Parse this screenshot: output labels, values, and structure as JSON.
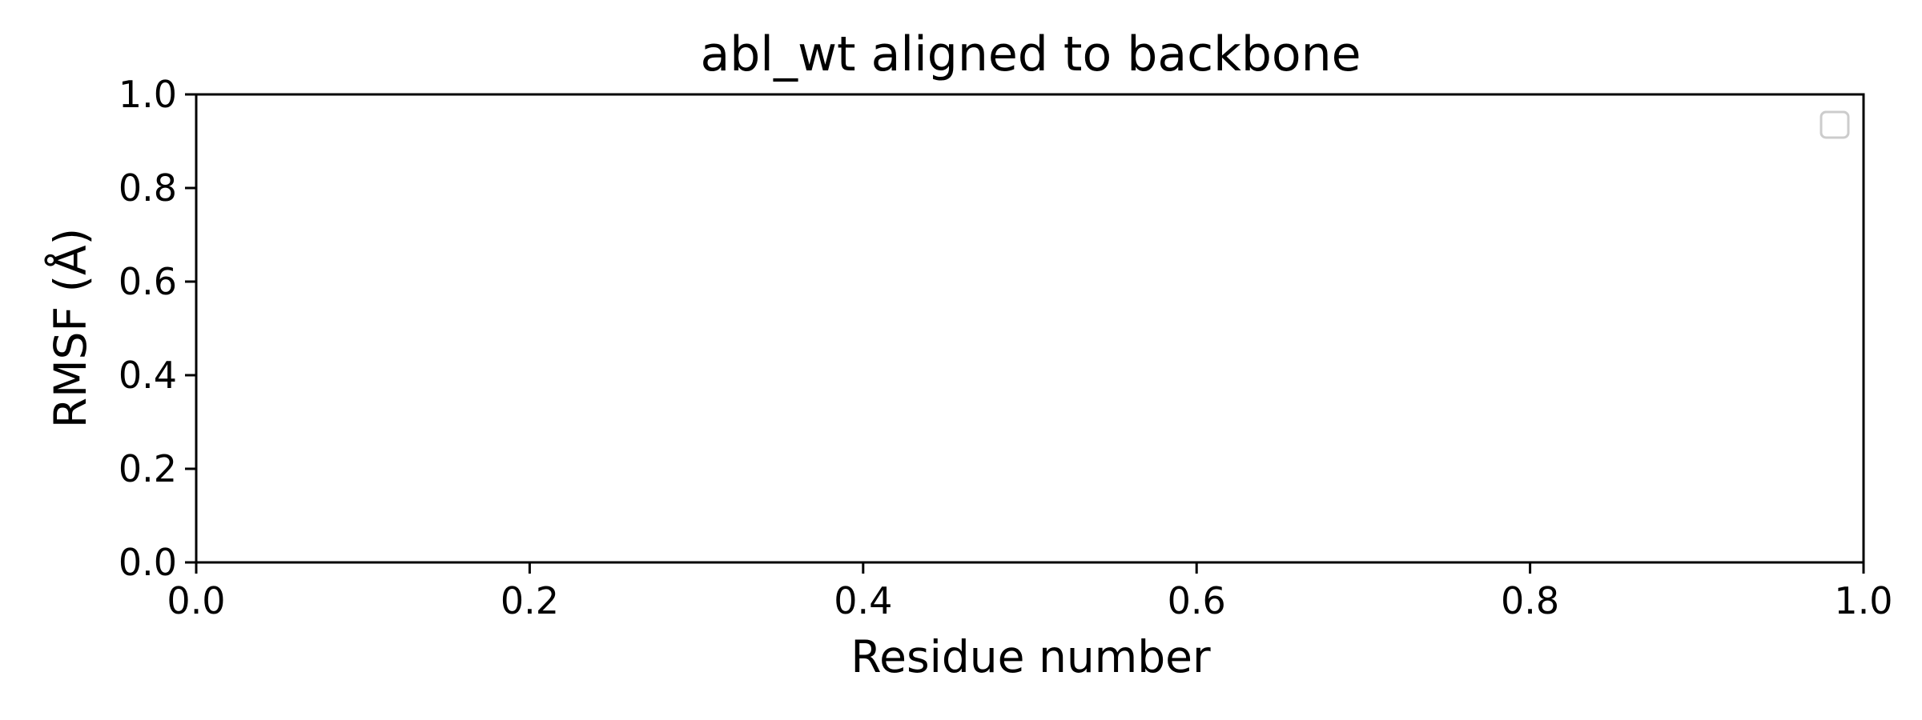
{
  "chart_data": {
    "type": "line",
    "title": "abl_wt aligned to backbone",
    "xlabel": "Residue number",
    "ylabel": "RMSF (Å)",
    "xlim": [
      0.0,
      1.0
    ],
    "ylim": [
      0.0,
      1.0
    ],
    "xticks": [
      "0.0",
      "0.2",
      "0.4",
      "0.6",
      "0.8",
      "1.0"
    ],
    "yticks": [
      "0.0",
      "0.2",
      "0.4",
      "0.6",
      "0.8",
      "1.0"
    ],
    "series": [],
    "legend": {
      "position": "upper right",
      "entries": []
    },
    "grid": false
  }
}
